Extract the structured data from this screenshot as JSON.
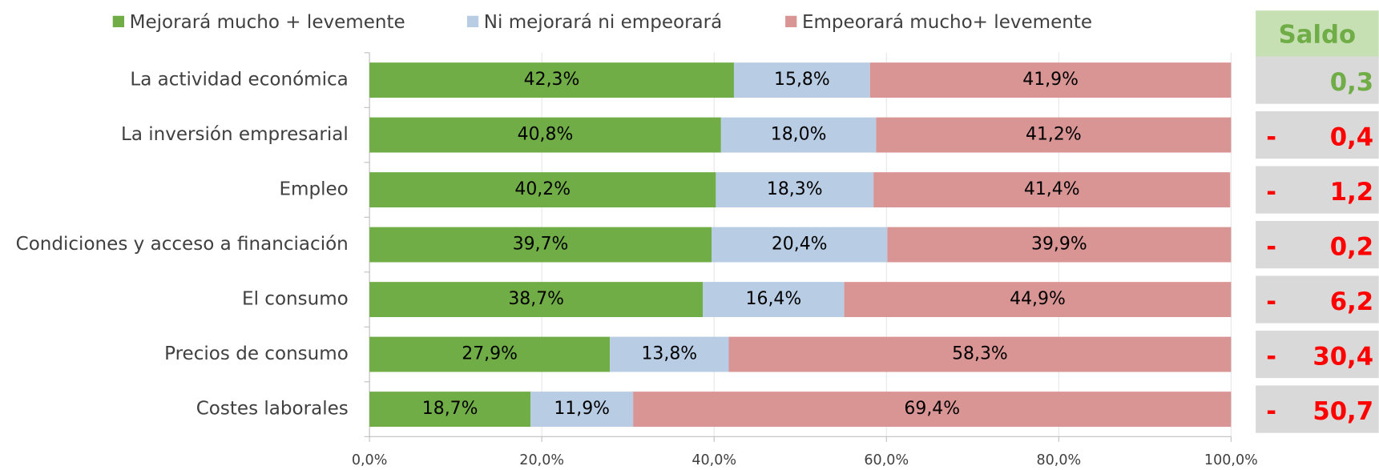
{
  "chart_data": {
    "type": "stacked_barh",
    "categories": [
      "La actividad económica",
      "La inversión empresarial",
      "Empleo",
      "Condiciones y acceso a financiación",
      "El consumo",
      "Precios de consumo",
      "Costes laborales"
    ],
    "series": [
      {
        "name": "Mejorará mucho + levemente",
        "color": "#70ad47",
        "values": [
          42.3,
          40.8,
          40.2,
          39.7,
          38.7,
          27.9,
          18.7
        ],
        "value_labels": [
          "42,3%",
          "40,8%",
          "40,2%",
          "39,7%",
          "38,7%",
          "27,9%",
          "18,7%"
        ]
      },
      {
        "name": "Ni mejorará ni empeorará",
        "color": "#b8cce4",
        "values": [
          15.8,
          18.0,
          18.3,
          20.4,
          16.4,
          13.8,
          11.9
        ],
        "value_labels": [
          "15,8%",
          "18,0%",
          "18,3%",
          "20,4%",
          "16,4%",
          "13,8%",
          "11,9%"
        ]
      },
      {
        "name": "Empeorará mucho+ levemente",
        "color": "#d99594",
        "values": [
          41.9,
          41.2,
          41.4,
          39.9,
          44.9,
          58.3,
          69.4
        ],
        "value_labels": [
          "41,9%",
          "41,2%",
          "41,4%",
          "39,9%",
          "44,9%",
          "58,3%",
          "69,4%"
        ]
      }
    ],
    "xlim": [
      0,
      100
    ],
    "xticks": [
      {
        "value": 0,
        "label": "0,0%"
      },
      {
        "value": 20,
        "label": "20,0%"
      },
      {
        "value": 40,
        "label": "40,0%"
      },
      {
        "value": 60,
        "label": "60,0%"
      },
      {
        "value": 80,
        "label": "80,0%"
      },
      {
        "value": 100,
        "label": "100,0%"
      }
    ],
    "legend": "top",
    "saldo": {
      "title": "Saldo",
      "header_color": "#c6e0b4",
      "title_color": "#70ad47",
      "cell_color": "#d9d9d9",
      "positive_color": "#70ad47",
      "negative_color": "#ff0000",
      "values": [
        0.3,
        -0.4,
        -1.2,
        -0.2,
        -6.2,
        -30.4,
        -50.7
      ],
      "value_labels": [
        [
          "0,3"
        ],
        [
          "-",
          "0,4"
        ],
        [
          "-",
          "1,2"
        ],
        [
          "-",
          "0,2"
        ],
        [
          "-",
          "6,2"
        ],
        [
          "-",
          "30,4"
        ],
        [
          "-",
          "50,7"
        ]
      ]
    }
  }
}
